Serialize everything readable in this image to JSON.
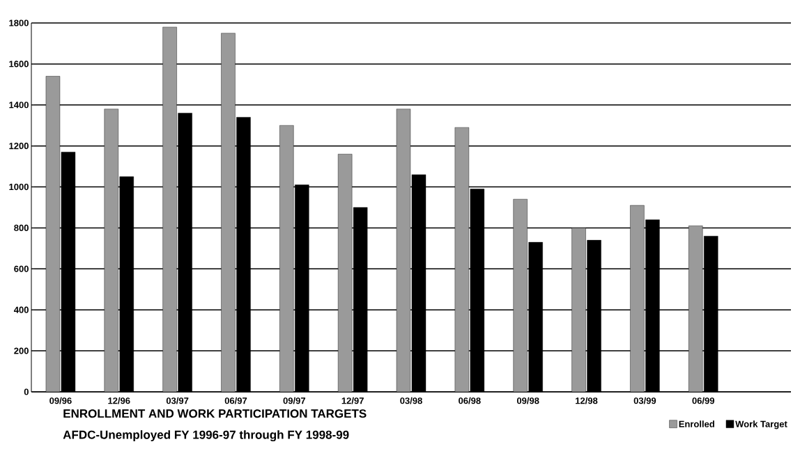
{
  "chart_data": {
    "type": "bar",
    "title": "ENROLLMENT AND WORK PARTICIPATION TARGETS",
    "subtitle": "AFDC-Unemployed  FY 1996-97 through FY 1998-99",
    "categories": [
      "09/96",
      "12/96",
      "03/97",
      "06/97",
      "09/97",
      "12/97",
      "03/98",
      "06/98",
      "09/98",
      "12/98",
      "03/99",
      "06/99"
    ],
    "series": [
      {
        "name": "Enrolled",
        "color": "#9a9a9a",
        "values": [
          1540,
          1380,
          1780,
          1750,
          1300,
          1160,
          1380,
          1290,
          940,
          800,
          910,
          810
        ]
      },
      {
        "name": "Work Target",
        "color": "#000000",
        "values": [
          1170,
          1050,
          1360,
          1340,
          1010,
          900,
          1060,
          990,
          730,
          740,
          840,
          760
        ]
      }
    ],
    "ylim": [
      0,
      1800
    ],
    "yticks": [
      0,
      200,
      400,
      600,
      800,
      1000,
      1200,
      1400,
      1600,
      1800
    ],
    "grid": "y",
    "legend": "bottom right"
  }
}
